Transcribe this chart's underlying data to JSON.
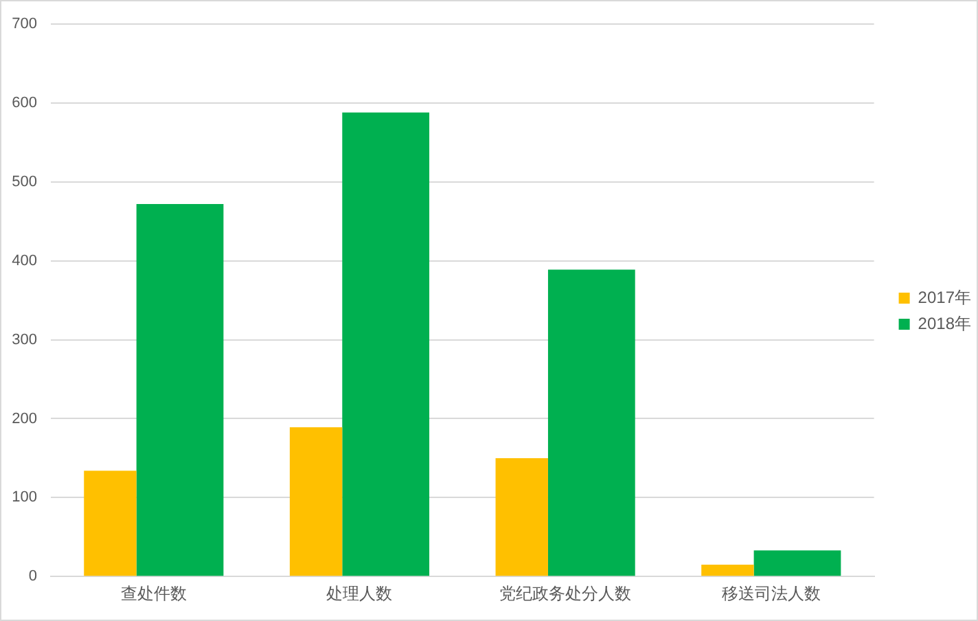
{
  "chart_data": {
    "type": "bar",
    "categories": [
      "查处件数",
      "处理人数",
      "党纪政务处分人数",
      "移送司法人数"
    ],
    "series": [
      {
        "name": "2017年",
        "color": "#ffc000",
        "values": [
          134,
          189,
          150,
          15
        ]
      },
      {
        "name": "2018年",
        "color": "#00b050",
        "values": [
          472,
          588,
          389,
          33
        ]
      }
    ],
    "ylim": [
      0,
      700
    ],
    "yticks": [
      0,
      100,
      200,
      300,
      400,
      500,
      600,
      700
    ],
    "grid": "y",
    "legend": "right"
  }
}
